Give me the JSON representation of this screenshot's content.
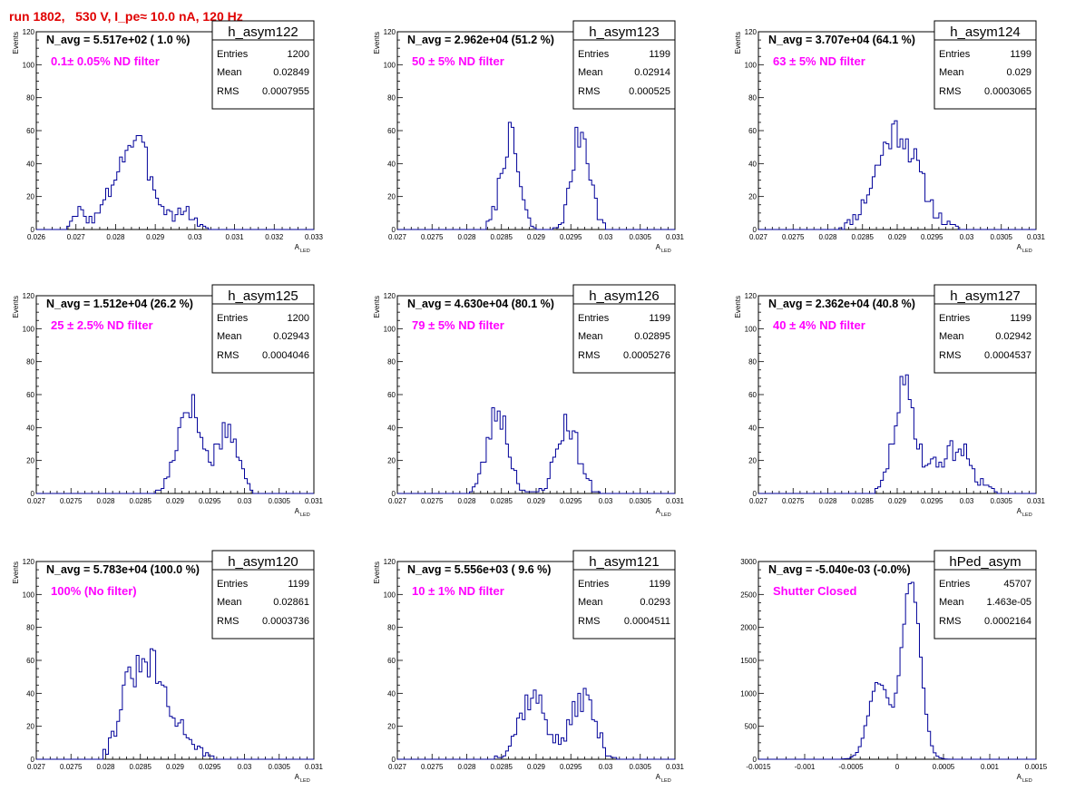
{
  "run_title": "run 1802,   530 V, I_pe≈ 10.0 nA, 120 Hz",
  "colors": {
    "title": "#e00000",
    "annotation": "#ff00ff",
    "histogram": "#000099",
    "text": "#000000"
  },
  "stat_labels": {
    "entries": "Entries",
    "mean": "Mean",
    "rms": "RMS"
  },
  "chart_data": [
    {
      "type": "histogram",
      "name": "h_asym122",
      "headline": "N_avg = 5.517e+02 ( 1.0 %)",
      "annotation": "0.1± 0.05% ND filter",
      "stats": {
        "entries": "1200",
        "mean": "0.02849",
        "rms": "0.0007955"
      },
      "xlabel": "A",
      "xlabel_sub": "LED",
      "ylabel": "Events",
      "xlim": [
        0.026,
        0.033
      ],
      "ylim": [
        0,
        120
      ],
      "xticks": [
        0.026,
        0.027,
        0.028,
        0.029,
        0.03,
        0.031,
        0.032,
        0.033
      ],
      "xtick_labels": [
        "0.026",
        "0.027",
        "0.028",
        "0.029",
        "0.03",
        "0.031",
        "0.032",
        "0.033"
      ],
      "yticks": [
        0,
        20,
        40,
        60,
        80,
        100,
        120
      ],
      "peaks": [
        {
          "mu": 0.02835,
          "sigma": 0.00045,
          "amp": 42
        },
        {
          "mu": 0.0287,
          "sigma": 0.0004,
          "amp": 14
        },
        {
          "mu": 0.0271,
          "sigma": 0.00015,
          "amp": 10
        },
        {
          "mu": 0.02975,
          "sigma": 0.00025,
          "amp": 10
        }
      ],
      "bins": 100,
      "seed": 3
    },
    {
      "type": "histogram",
      "name": "h_asym123",
      "headline": "N_avg = 2.962e+04 (51.2 %)",
      "annotation": "50 ± 5% ND filter",
      "stats": {
        "entries": "1199",
        "mean": "0.02914",
        "rms": "0.000525"
      },
      "xlabel": "A",
      "xlabel_sub": "LED",
      "ylabel": "Events",
      "xlim": [
        0.027,
        0.031
      ],
      "ylim": [
        0,
        120
      ],
      "xticks": [
        0.027,
        0.0275,
        0.028,
        0.0285,
        0.029,
        0.0295,
        0.03,
        0.0305,
        0.031
      ],
      "xtick_labels": [
        "0.027",
        "0.0275",
        "0.028",
        "0.0285",
        "0.029",
        "0.0295",
        "0.03",
        "0.0305",
        "0.031"
      ],
      "yticks": [
        0,
        20,
        40,
        60,
        80,
        100,
        120
      ],
      "peaks": [
        {
          "mu": 0.02862,
          "sigma": 0.00013,
          "amp": 55
        },
        {
          "mu": 0.02965,
          "sigma": 0.00013,
          "amp": 60
        }
      ],
      "bins": 100,
      "seed": 7
    },
    {
      "type": "histogram",
      "name": "h_asym124",
      "headline": "N_avg = 3.707e+04 (64.1 %)",
      "annotation": "63 ± 5% ND filter",
      "stats": {
        "entries": "1199",
        "mean": "0.029",
        "rms": "0.0003065"
      },
      "xlabel": "A",
      "xlabel_sub": "LED",
      "ylabel": "Events",
      "xlim": [
        0.027,
        0.031
      ],
      "ylim": [
        0,
        120
      ],
      "xticks": [
        0.027,
        0.0275,
        0.028,
        0.0285,
        0.029,
        0.0295,
        0.03,
        0.0305,
        0.031
      ],
      "xtick_labels": [
        "0.027",
        "0.0275",
        "0.028",
        "0.0285",
        "0.029",
        "0.0295",
        "0.03",
        "0.0305",
        "0.031"
      ],
      "yticks": [
        0,
        20,
        40,
        60,
        80,
        100,
        120
      ],
      "peaks": [
        {
          "mu": 0.029,
          "sigma": 0.0003,
          "amp": 60
        }
      ],
      "bins": 100,
      "seed": 11
    },
    {
      "type": "histogram",
      "name": "h_asym125",
      "headline": "N_avg = 1.512e+04 (26.2 %)",
      "annotation": "25 ± 2.5% ND filter",
      "stats": {
        "entries": "1200",
        "mean": "0.02943",
        "rms": "0.0004046"
      },
      "xlabel": "A",
      "xlabel_sub": "LED",
      "ylabel": "Events",
      "xlim": [
        0.027,
        0.031
      ],
      "ylim": [
        0,
        120
      ],
      "xticks": [
        0.027,
        0.0275,
        0.028,
        0.0285,
        0.029,
        0.0295,
        0.03,
        0.0305,
        0.031
      ],
      "xtick_labels": [
        "0.027",
        "0.0275",
        "0.028",
        "0.0285",
        "0.029",
        "0.0295",
        "0.03",
        "0.0305",
        "0.031"
      ],
      "yticks": [
        0,
        20,
        40,
        60,
        80,
        100,
        120
      ],
      "peaks": [
        {
          "mu": 0.0292,
          "sigma": 0.00017,
          "amp": 55
        },
        {
          "mu": 0.02975,
          "sigma": 0.00015,
          "amp": 40
        }
      ],
      "bins": 100,
      "seed": 17
    },
    {
      "type": "histogram",
      "name": "h_asym126",
      "headline": "N_avg = 4.630e+04 (80.1 %)",
      "annotation": "79 ± 5% ND filter",
      "stats": {
        "entries": "1199",
        "mean": "0.02895",
        "rms": "0.0005276"
      },
      "xlabel": "A",
      "xlabel_sub": "LED",
      "ylabel": "Events",
      "xlim": [
        0.027,
        0.031
      ],
      "ylim": [
        0,
        120
      ],
      "xticks": [
        0.027,
        0.0275,
        0.028,
        0.0285,
        0.029,
        0.0295,
        0.03,
        0.0305,
        0.031
      ],
      "xtick_labels": [
        "0.027",
        "0.0275",
        "0.028",
        "0.0285",
        "0.029",
        "0.0295",
        "0.03",
        "0.0305",
        "0.031"
      ],
      "yticks": [
        0,
        20,
        40,
        60,
        80,
        100,
        120
      ],
      "peaks": [
        {
          "mu": 0.02845,
          "sigma": 0.00015,
          "amp": 50
        },
        {
          "mu": 0.02945,
          "sigma": 0.00016,
          "amp": 42
        }
      ],
      "bins": 100,
      "seed": 23
    },
    {
      "type": "histogram",
      "name": "h_asym127",
      "headline": "N_avg = 2.362e+04 (40.8 %)",
      "annotation": "40 ± 4% ND filter",
      "stats": {
        "entries": "1199",
        "mean": "0.02942",
        "rms": "0.0004537"
      },
      "xlabel": "A",
      "xlabel_sub": "LED",
      "ylabel": "Events",
      "xlim": [
        0.027,
        0.031
      ],
      "ylim": [
        0,
        120
      ],
      "xticks": [
        0.027,
        0.0275,
        0.028,
        0.0285,
        0.029,
        0.0295,
        0.03,
        0.0305,
        0.031
      ],
      "xtick_labels": [
        "0.027",
        "0.0275",
        "0.028",
        "0.0285",
        "0.029",
        "0.0295",
        "0.03",
        "0.0305",
        "0.031"
      ],
      "yticks": [
        0,
        20,
        40,
        60,
        80,
        100,
        120
      ],
      "peaks": [
        {
          "mu": 0.0291,
          "sigma": 0.00015,
          "amp": 62
        },
        {
          "mu": 0.0299,
          "sigma": 0.0002,
          "amp": 25
        },
        {
          "mu": 0.0295,
          "sigma": 0.0002,
          "amp": 12
        }
      ],
      "bins": 100,
      "seed": 29
    },
    {
      "type": "histogram",
      "name": "h_asym120",
      "headline": "N_avg = 5.783e+04 (100.0 %)",
      "annotation": "100% (No filter)",
      "stats": {
        "entries": "1199",
        "mean": "0.02861",
        "rms": "0.0003736"
      },
      "xlabel": "A",
      "xlabel_sub": "LED",
      "ylabel": "Events",
      "xlim": [
        0.027,
        0.031
      ],
      "ylim": [
        0,
        120
      ],
      "xticks": [
        0.027,
        0.0275,
        0.028,
        0.0285,
        0.029,
        0.0295,
        0.03,
        0.0305,
        0.031
      ],
      "xtick_labels": [
        "0.027",
        "0.0275",
        "0.028",
        "0.0285",
        "0.029",
        "0.0295",
        "0.03",
        "0.0305",
        "0.031"
      ],
      "yticks": [
        0,
        20,
        40,
        60,
        80,
        100,
        120
      ],
      "peaks": [
        {
          "mu": 0.02838,
          "sigma": 0.00018,
          "amp": 48
        },
        {
          "mu": 0.0287,
          "sigma": 0.00014,
          "amp": 42
        },
        {
          "mu": 0.02905,
          "sigma": 0.0002,
          "amp": 20
        }
      ],
      "bins": 100,
      "seed": 31
    },
    {
      "type": "histogram",
      "name": "h_asym121",
      "headline": "N_avg = 5.556e+03 ( 9.6 %)",
      "annotation": "10 ± 1% ND filter",
      "stats": {
        "entries": "1199",
        "mean": "0.0293",
        "rms": "0.0004511"
      },
      "xlabel": "A",
      "xlabel_sub": "LED",
      "ylabel": "Events",
      "xlim": [
        0.027,
        0.031
      ],
      "ylim": [
        0,
        120
      ],
      "xticks": [
        0.027,
        0.0275,
        0.028,
        0.0285,
        0.029,
        0.0295,
        0.03,
        0.0305,
        0.031
      ],
      "xtick_labels": [
        "0.027",
        "0.0275",
        "0.028",
        "0.0285",
        "0.029",
        "0.0295",
        "0.03",
        "0.0305",
        "0.031"
      ],
      "yticks": [
        0,
        20,
        40,
        60,
        80,
        100,
        120
      ],
      "peaks": [
        {
          "mu": 0.02895,
          "sigma": 0.0002,
          "amp": 38
        },
        {
          "mu": 0.02968,
          "sigma": 0.00017,
          "amp": 38
        }
      ],
      "bins": 100,
      "seed": 37
    },
    {
      "type": "histogram",
      "name": "hPed_asym",
      "headline": "N_avg = -5.040e-03 (-0.0%)",
      "annotation": "Shutter Closed",
      "stats": {
        "entries": "45707",
        "mean": "1.463e-05",
        "rms": "0.0002164"
      },
      "xlabel": "A",
      "xlabel_sub": "LED",
      "ylabel": "",
      "xlim": [
        -0.0015,
        0.0015
      ],
      "ylim": [
        0,
        3000
      ],
      "xticks": [
        -0.0015,
        -0.001,
        -0.0005,
        0,
        0.0005,
        0.001,
        0.0015
      ],
      "xtick_labels": [
        "-0.0015",
        "-0.001",
        "-0.0005",
        "0",
        "0.0005",
        "0.001",
        "0.0015"
      ],
      "yticks": [
        0,
        500,
        1000,
        1500,
        2000,
        2500,
        3000
      ],
      "peaks": [
        {
          "mu": 0.00015,
          "sigma": 0.0001,
          "amp": 2700
        },
        {
          "mu": -0.0002,
          "sigma": 0.00011,
          "amp": 1150
        }
      ],
      "bins": 100,
      "seed": 41
    }
  ]
}
